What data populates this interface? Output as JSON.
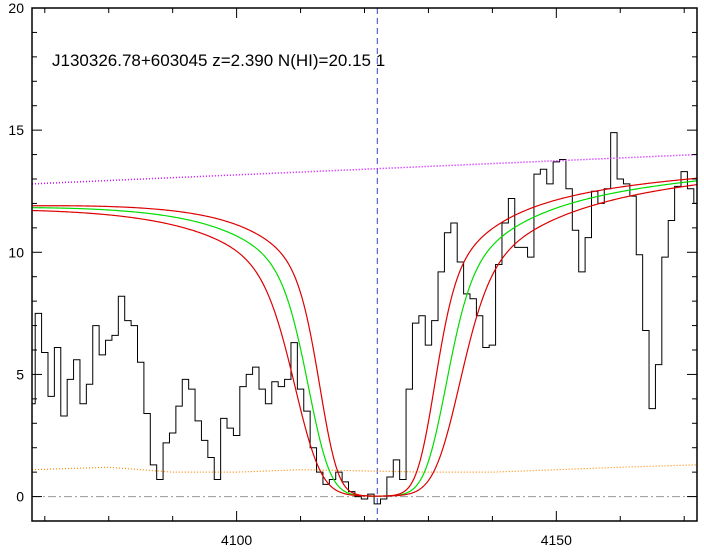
{
  "chart_data": {
    "type": "line",
    "title": "J130326.78+603045 z=2.390 N(HI)=20.15 1",
    "xlabel": "",
    "ylabel": "",
    "xlim": [
      4068,
      4172
    ],
    "ylim": [
      -1,
      20
    ],
    "x_ticks": [
      4100,
      4150
    ],
    "y_ticks": [
      0,
      5,
      10,
      15,
      20
    ],
    "grid": false,
    "marker_x": 4122.0,
    "zero_level": 0,
    "series": [
      {
        "kind": "spectrum",
        "color": "#000000",
        "x": [
          4068,
          4069,
          4070,
          4071,
          4072,
          4073,
          4074,
          4075,
          4076,
          4077,
          4078,
          4079,
          4080,
          4081,
          4082,
          4083,
          4084,
          4085,
          4086,
          4087,
          4088,
          4089,
          4090,
          4091,
          4092,
          4093,
          4094,
          4095,
          4096,
          4097,
          4098,
          4099,
          4100,
          4101,
          4102,
          4103,
          4104,
          4105,
          4106,
          4107,
          4108,
          4109,
          4110,
          4111,
          4112,
          4113,
          4114,
          4115,
          4116,
          4117,
          4118,
          4119,
          4120,
          4121,
          4122,
          4123,
          4124,
          4125,
          4126,
          4127,
          4128,
          4129,
          4130,
          4131,
          4132,
          4133,
          4134,
          4135,
          4136,
          4137,
          4138,
          4139,
          4140,
          4141,
          4142,
          4143,
          4144,
          4145,
          4146,
          4147,
          4148,
          4149,
          4150,
          4151,
          4152,
          4153,
          4154,
          4155,
          4156,
          4157,
          4158,
          4159,
          4160,
          4161,
          4162,
          4163,
          4164,
          4165,
          4166,
          4167,
          4168,
          4169,
          4170,
          4171,
          4172
        ],
        "values": [
          3.8,
          7.5,
          5.9,
          4.1,
          6.1,
          3.3,
          4.8,
          5.6,
          3.8,
          4.6,
          7.0,
          5.8,
          6.4,
          6.6,
          8.2,
          7.2,
          7.0,
          5.5,
          3.4,
          1.3,
          0.7,
          2.2,
          2.6,
          3.7,
          4.8,
          4.4,
          3.1,
          2.3,
          1.6,
          0.7,
          3.2,
          2.8,
          2.5,
          4.5,
          5.0,
          5.3,
          4.4,
          3.8,
          4.7,
          4.5,
          4.8,
          6.3,
          4.4,
          3.5,
          2.0,
          1.0,
          0.5,
          0.7,
          1.0,
          0.6,
          0.2,
          0.0,
          -0.1,
          0.1,
          -0.3,
          -0.1,
          0.8,
          1.5,
          0.7,
          4.4,
          7.1,
          7.4,
          6.2,
          7.2,
          9.2,
          10.8,
          11.2,
          9.6,
          8.3,
          8.1,
          7.4,
          6.1,
          6.2,
          9.5,
          11.2,
          12.2,
          10.2,
          10.2,
          9.8,
          13.2,
          13.4,
          12.8,
          13.7,
          13.8,
          12.6,
          10.9,
          9.2,
          10.6,
          12.5,
          12.0,
          12.6,
          14.9,
          13.0,
          12.8,
          12.3,
          9.9,
          6.8,
          3.6,
          5.4,
          9.8,
          11.3,
          12.7,
          13.3,
          12.6,
          12.0
        ]
      },
      {
        "kind": "continuum",
        "color": "#cc00ff",
        "x": [
          4068,
          4172
        ],
        "values": [
          12.8,
          14.0
        ]
      },
      {
        "kind": "error",
        "color": "#ff8800",
        "x": [
          4068,
          4080,
          4090,
          4100,
          4110,
          4120,
          4130,
          4140,
          4150,
          4160,
          4172
        ],
        "values": [
          1.1,
          1.2,
          1.0,
          1.0,
          1.1,
          1.05,
          1.0,
          1.0,
          1.1,
          1.2,
          1.3
        ]
      },
      {
        "kind": "voigt-fit",
        "color": "#00dd00",
        "center": 4122.0,
        "width": 7.2
      },
      {
        "kind": "voigt-fit-lower",
        "color": "#dd0000",
        "center": 4122.0,
        "width": 6.0
      },
      {
        "kind": "voigt-fit-upper",
        "color": "#dd0000",
        "center": 4122.0,
        "width": 8.6
      }
    ]
  }
}
